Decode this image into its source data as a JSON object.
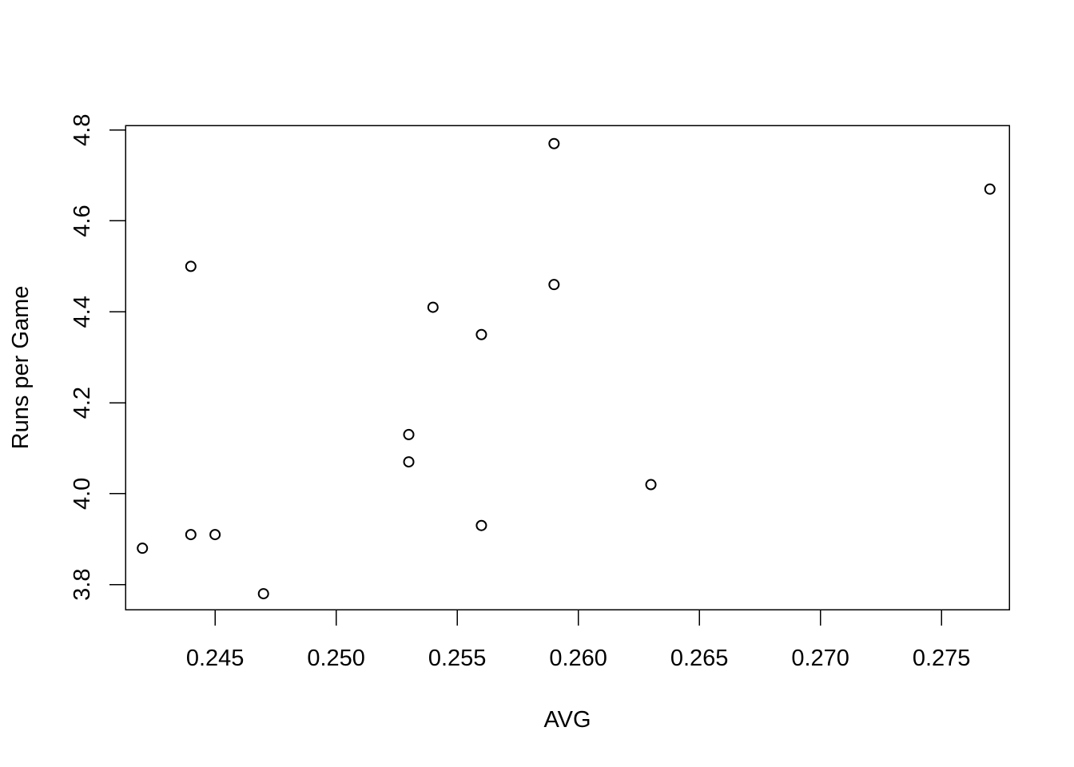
{
  "chart_data": {
    "type": "scatter",
    "title": "",
    "xlabel": "AVG",
    "ylabel": "Runs per Game",
    "xlim": [
      0.2413,
      0.2778
    ],
    "ylim": [
      3.745,
      4.81
    ],
    "x_ticks": [
      {
        "value": 0.245,
        "label": "0.245"
      },
      {
        "value": 0.25,
        "label": "0.250"
      },
      {
        "value": 0.255,
        "label": "0.255"
      },
      {
        "value": 0.26,
        "label": "0.260"
      },
      {
        "value": 0.265,
        "label": "0.265"
      },
      {
        "value": 0.27,
        "label": "0.270"
      },
      {
        "value": 0.275,
        "label": "0.275"
      }
    ],
    "y_ticks": [
      {
        "value": 3.8,
        "label": "3.8"
      },
      {
        "value": 4.0,
        "label": "4.0"
      },
      {
        "value": 4.2,
        "label": "4.2"
      },
      {
        "value": 4.4,
        "label": "4.4"
      },
      {
        "value": 4.6,
        "label": "4.6"
      },
      {
        "value": 4.8,
        "label": "4.8"
      }
    ],
    "grid": false,
    "legend": "none",
    "marker": "open-circle",
    "colors": {
      "point": "#000000",
      "axis": "#000000",
      "background": "#ffffff"
    },
    "points": [
      {
        "x": 0.242,
        "y": 3.88
      },
      {
        "x": 0.244,
        "y": 3.91
      },
      {
        "x": 0.244,
        "y": 4.5
      },
      {
        "x": 0.245,
        "y": 3.91
      },
      {
        "x": 0.247,
        "y": 3.78
      },
      {
        "x": 0.253,
        "y": 4.07
      },
      {
        "x": 0.253,
        "y": 4.13
      },
      {
        "x": 0.254,
        "y": 4.41
      },
      {
        "x": 0.256,
        "y": 3.93
      },
      {
        "x": 0.256,
        "y": 4.35
      },
      {
        "x": 0.259,
        "y": 4.46
      },
      {
        "x": 0.259,
        "y": 4.77
      },
      {
        "x": 0.263,
        "y": 4.02
      },
      {
        "x": 0.277,
        "y": 4.67
      }
    ]
  }
}
